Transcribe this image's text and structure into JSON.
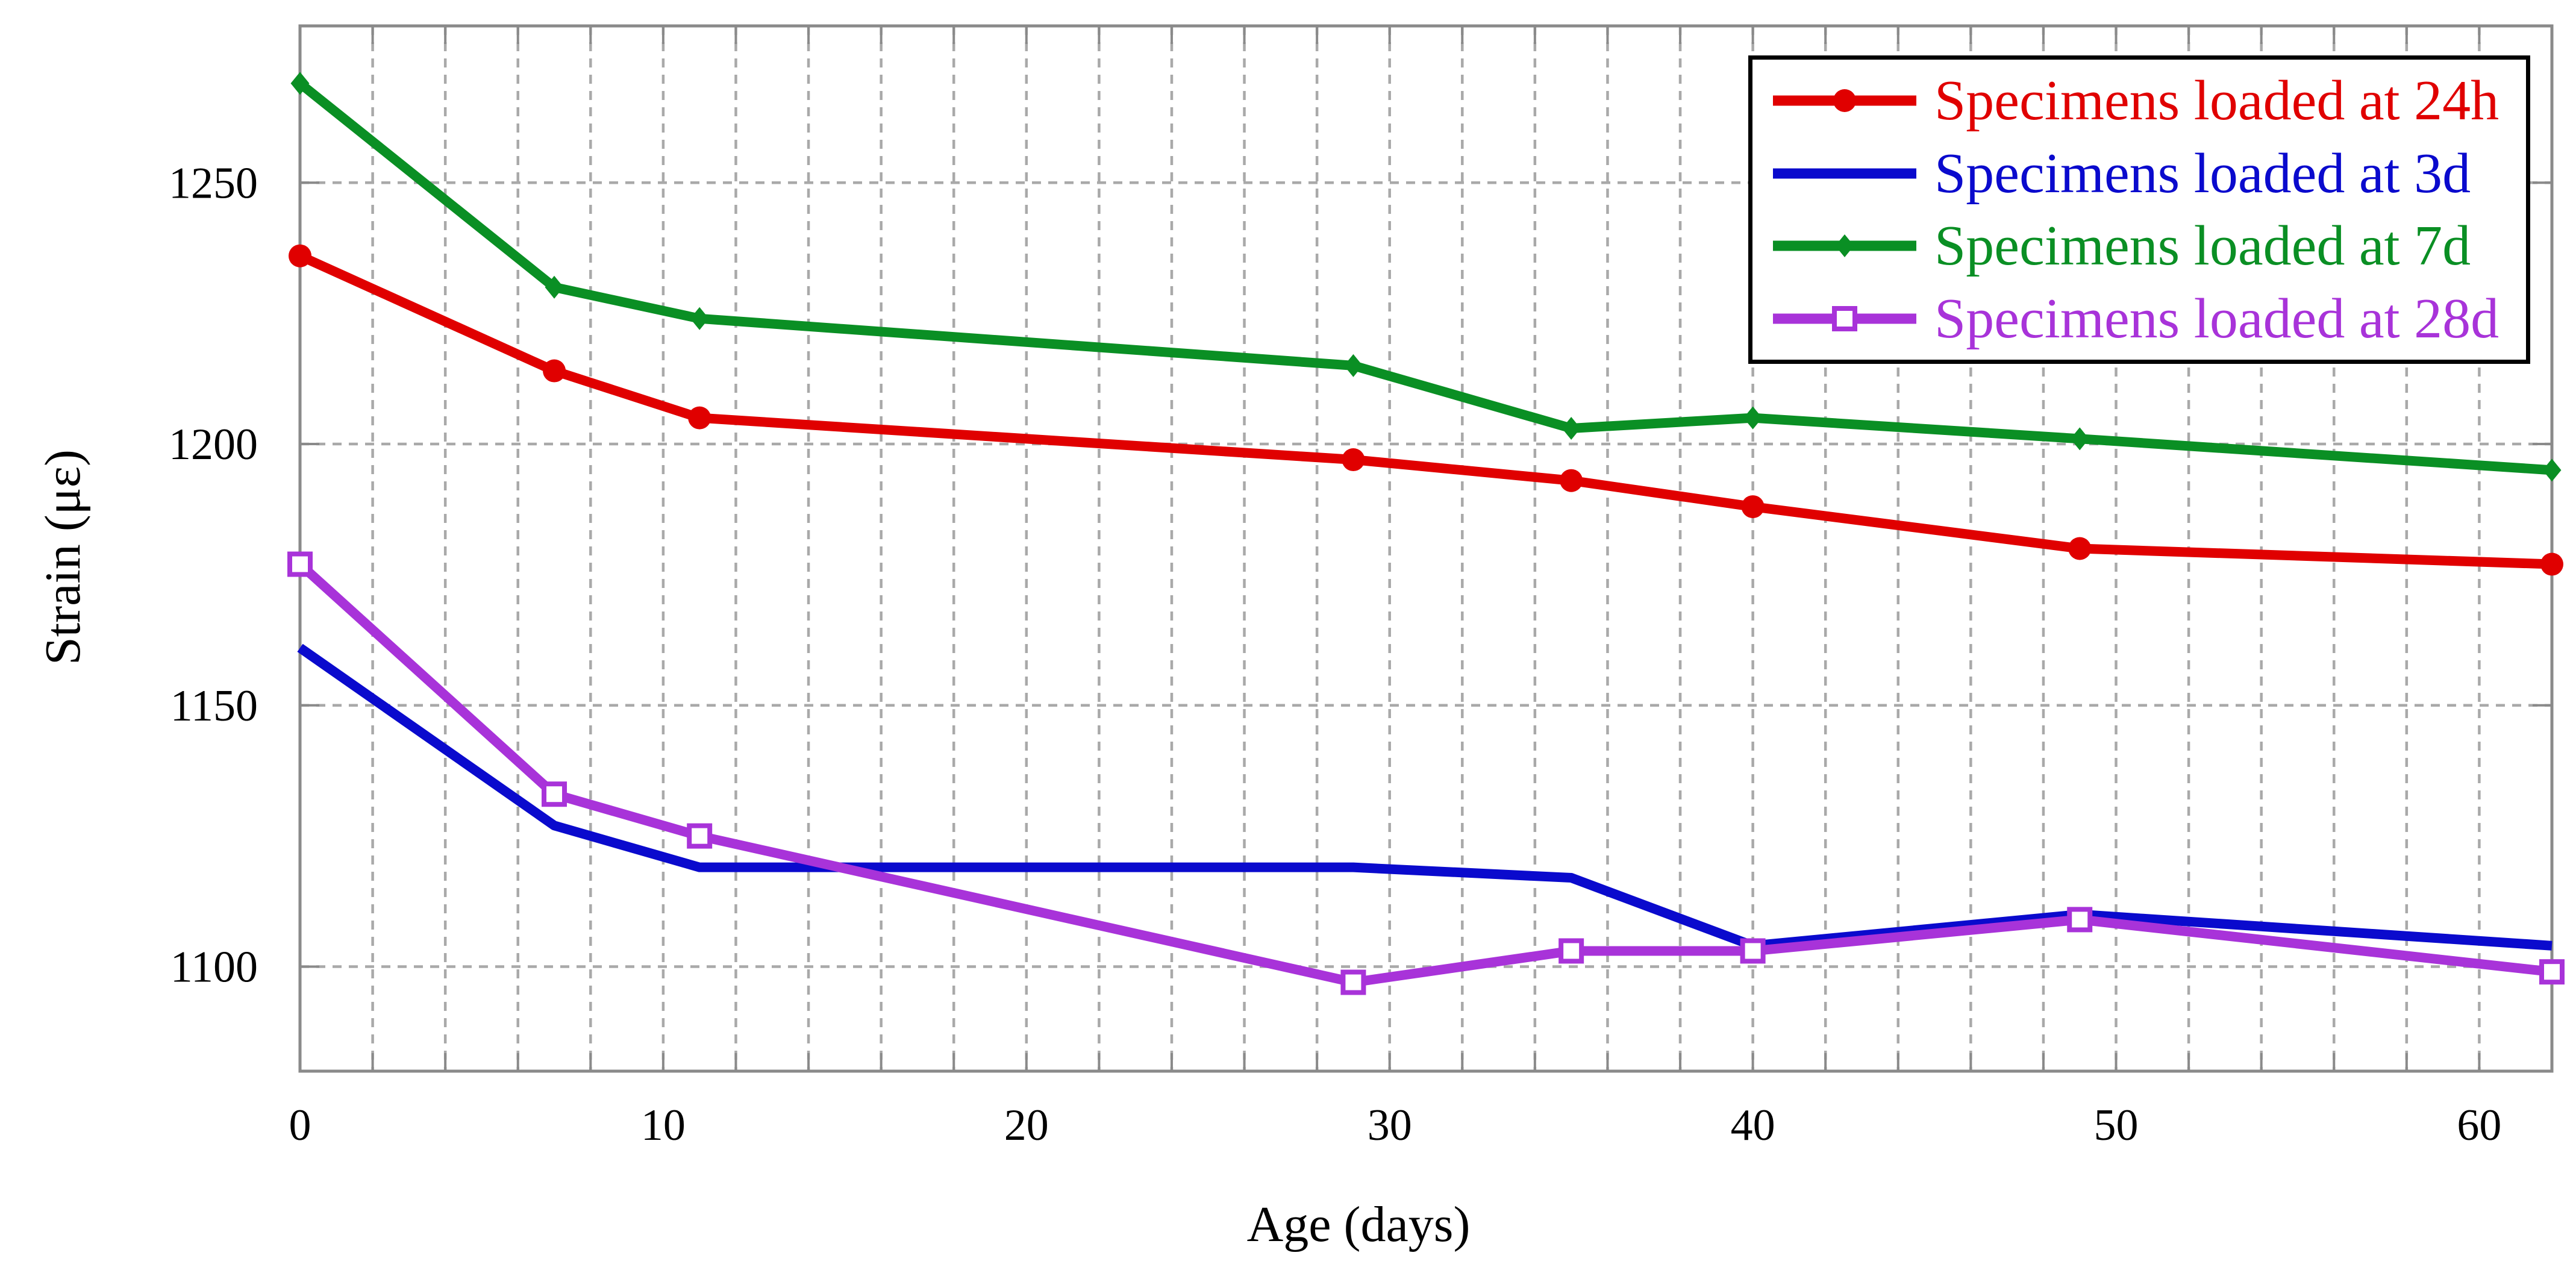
{
  "chart_data": {
    "type": "line",
    "title": "",
    "xlabel": "Age (days)",
    "ylabel": "Strain (με)",
    "xlim": [
      0,
      62
    ],
    "ylim": [
      1080,
      1280
    ],
    "x_ticks": {
      "values": [
        0,
        10,
        20,
        30,
        40,
        50,
        60
      ],
      "labels": [
        "0",
        "10",
        "20",
        "30",
        "40",
        "50",
        "60"
      ]
    },
    "y_ticks": {
      "values": [
        1100,
        1150,
        1200,
        1250
      ],
      "labels": [
        "1100",
        "1150",
        "1200",
        "1250"
      ]
    },
    "x_gridline_interval": 2,
    "grid_style": "dashed",
    "grid_on": true,
    "legend_position": "top-right",
    "axis_color": "#8a8a8a",
    "grid_color": "#a9a9a9",
    "text_color": "#000000",
    "x": [
      0,
      7,
      11,
      29,
      35,
      40,
      49,
      62
    ],
    "series": [
      {
        "name": "Specimens loaded at 24h",
        "color": "#e00000",
        "marker": "filled-circle",
        "values": [
          1236,
          1214,
          1205,
          1197,
          1193,
          1188,
          1180,
          1177
        ]
      },
      {
        "name": "Specimens loaded at 3d",
        "color": "#0a0acd",
        "marker": "none",
        "values": [
          1161,
          1127,
          1119,
          1119,
          1117,
          1104,
          1110,
          1104
        ]
      },
      {
        "name": "Specimens loaded at 7d",
        "color": "#0a8f24",
        "marker": "filled-diamond",
        "values": [
          1269,
          1230,
          1224,
          1215,
          1203,
          1205,
          1201,
          1195
        ]
      },
      {
        "name": "Specimens loaded at 28d",
        "color": "#a833d9",
        "marker": "open-square",
        "values": [
          1177,
          1133,
          1125,
          1097,
          1103,
          1103,
          1109,
          1099
        ]
      }
    ]
  }
}
